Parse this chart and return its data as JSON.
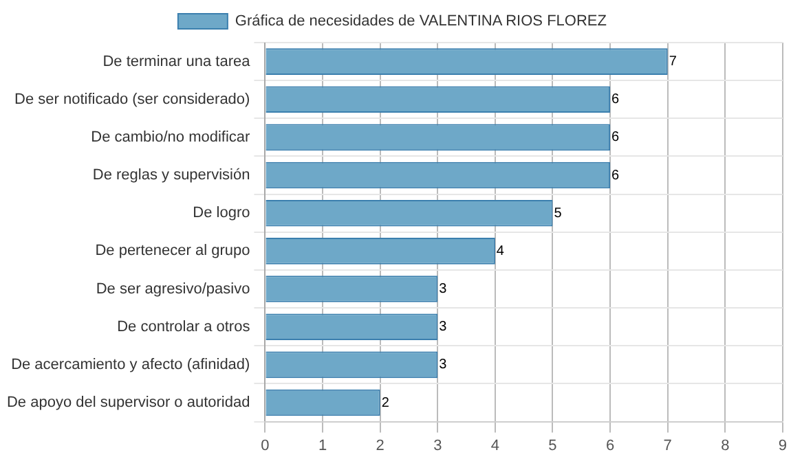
{
  "chart_data": {
    "type": "bar",
    "orientation": "horizontal",
    "categories": [
      "De terminar una tarea",
      "De ser notificado (ser considerado)",
      "De cambio/no modificar",
      "De reglas y supervisión",
      "De logro",
      "De pertenecer al grupo",
      "De ser agresivo/pasivo",
      "De controlar a otros",
      "De acercamiento y afecto (afinidad)",
      "De apoyo del supervisor o autoridad"
    ],
    "series": [
      {
        "name": "Gráfica de necesidades de VALENTINA RIOS FLOREZ",
        "color": "#6ea8c8",
        "values": [
          7,
          6,
          6,
          6,
          5,
          4,
          3,
          3,
          3,
          2
        ]
      }
    ],
    "xlim": [
      0,
      9
    ],
    "xticks": [
      0,
      1,
      2,
      3,
      4,
      5,
      6,
      7,
      8,
      9
    ],
    "grid": true,
    "legend": "top",
    "data_labels": true
  }
}
